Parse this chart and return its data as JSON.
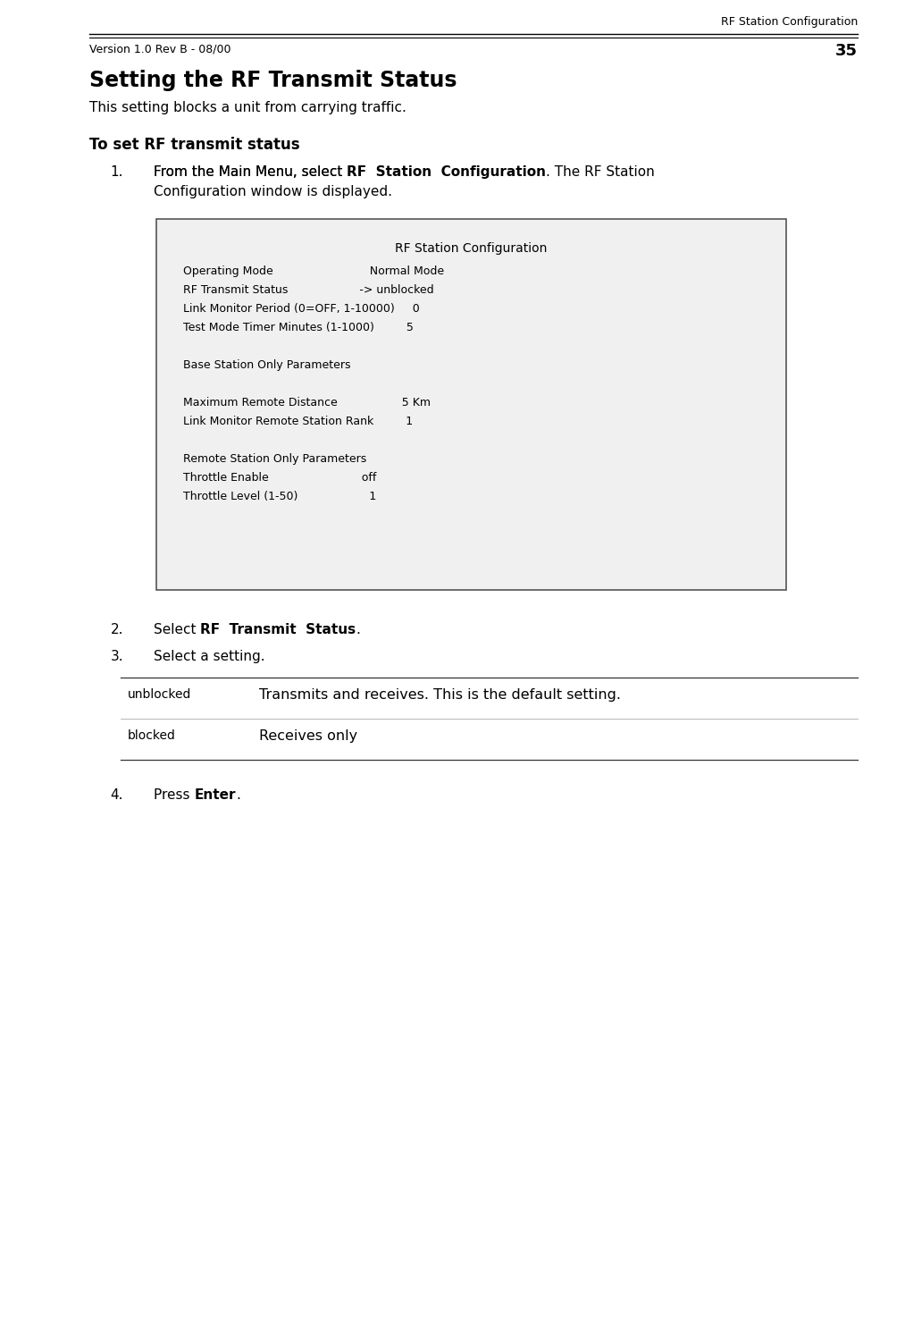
{
  "page_title": "RF Station Configuration",
  "page_number": "35",
  "version": "Version 1.0 Rev B - 08/00",
  "section_title": "Setting the RF Transmit Status",
  "section_subtitle": "This setting blocks a unit from carrying traffic.",
  "procedure_title": "To set RF transmit status",
  "terminal_title": "RF Station Configuration",
  "terminal_lines": [
    "    Operating Mode                           Normal Mode",
    "    RF Transmit Status                    -> unblocked",
    "    Link Monitor Period (0=OFF, 1-10000)     0",
    "    Test Mode Timer Minutes (1-1000)         5",
    "",
    "    Base Station Only Parameters",
    "",
    "    Maximum Remote Distance                  5 Km",
    "    Link Monitor Remote Station Rank         1",
    "",
    "    Remote Station Only Parameters",
    "    Throttle Enable                          off",
    "    Throttle Level (1-50)                    1"
  ],
  "table_rows": [
    {
      "code": "unblocked",
      "description": "Transmits and receives. This is the default setting."
    },
    {
      "code": "blocked",
      "description": "Receives only"
    }
  ],
  "bg_color": "#ffffff",
  "text_color": "#000000",
  "mono_font": "Courier New",
  "body_font": "DejaVu Sans"
}
